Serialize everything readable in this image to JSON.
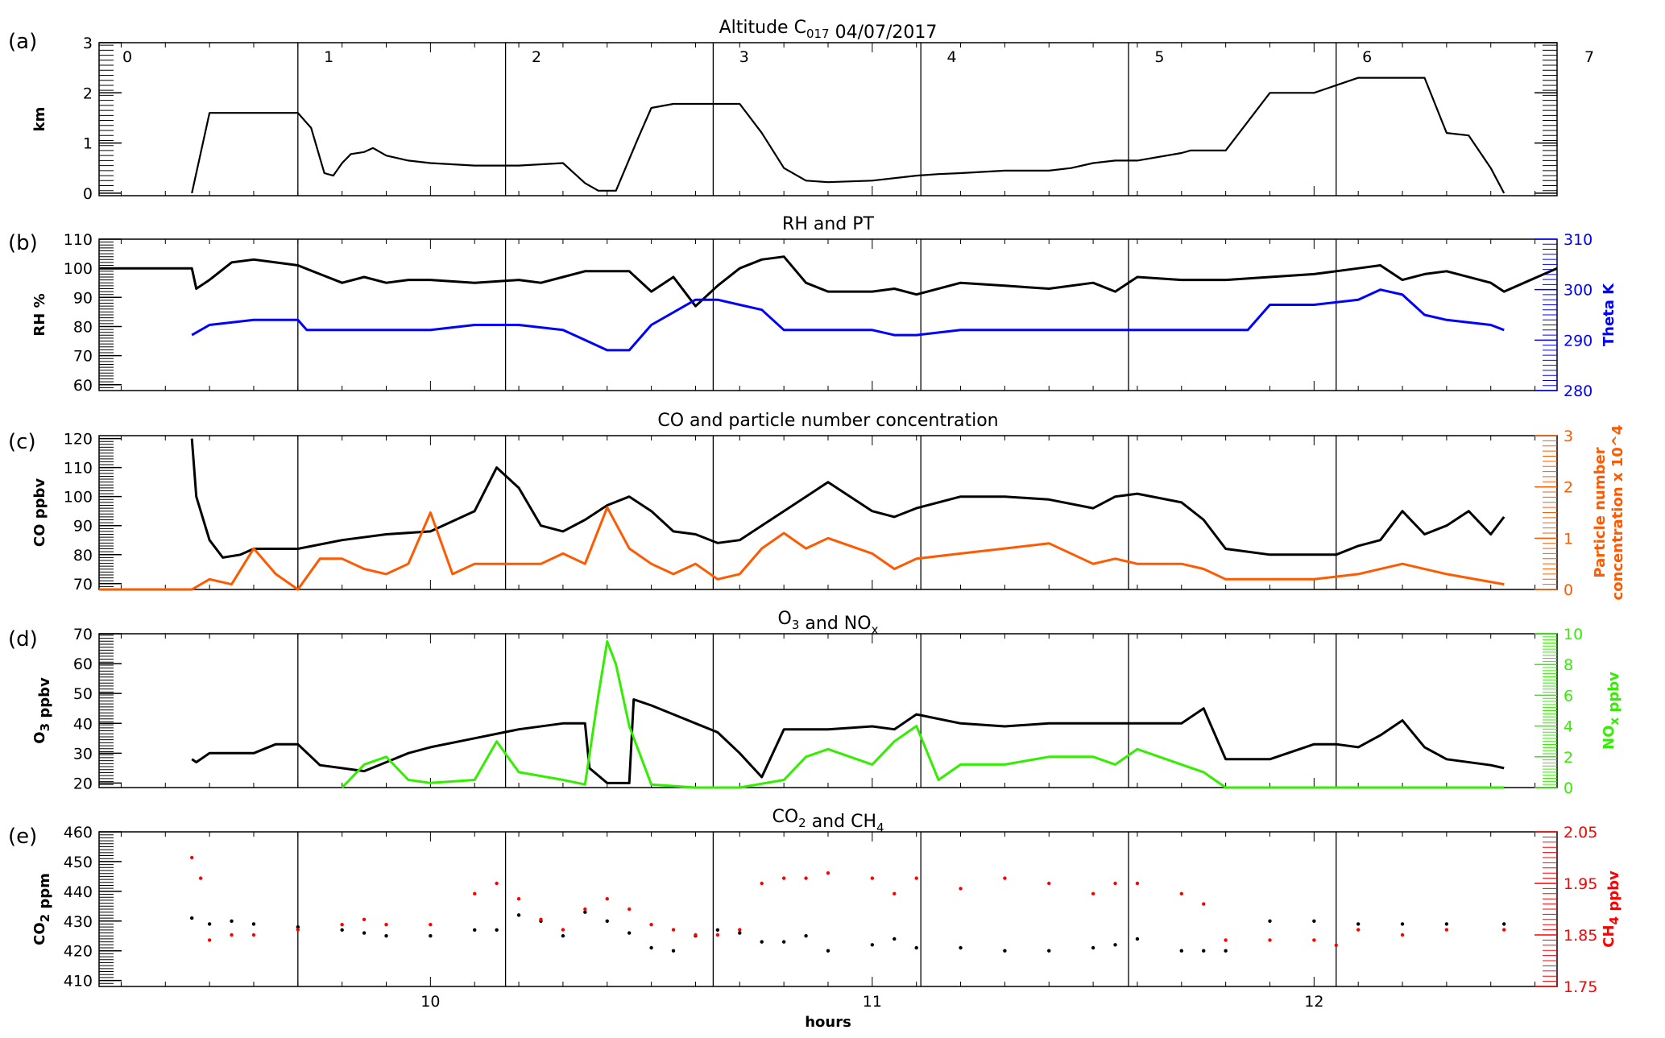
{
  "figure": {
    "x_axis": {
      "label": "hours",
      "range": [
        9.25,
        12.55
      ],
      "tick_values": [
        10,
        11,
        12
      ],
      "tick_labels": [
        "10",
        "11",
        "12"
      ],
      "segment_boundaries": [
        9.7,
        10.17,
        10.64,
        11.11,
        11.58,
        12.05
      ],
      "segment_labels": [
        "0",
        "1",
        "2",
        "3",
        "4",
        "5",
        "6",
        "7"
      ]
    }
  },
  "chart_data": [
    {
      "panel": "(a)",
      "type": "line",
      "title": "Altitude   C017   04/07/2017",
      "ylabel": "km",
      "ylim": [
        -0.05,
        3
      ],
      "y_ticks": [
        "0",
        "1",
        "2",
        "3"
      ],
      "series": [
        {
          "color": "#000000",
          "x": [
            9.46,
            9.5,
            9.6,
            9.7,
            9.73,
            9.75,
            9.76,
            9.78,
            9.8,
            9.82,
            9.85,
            9.87,
            9.9,
            9.95,
            10.0,
            10.1,
            10.2,
            10.3,
            10.35,
            10.38,
            10.42,
            10.47,
            10.5,
            10.55,
            10.6,
            10.7,
            10.75,
            10.8,
            10.85,
            10.9,
            11.0,
            11.1,
            11.15,
            11.2,
            11.3,
            11.4,
            11.45,
            11.5,
            11.55,
            11.6,
            11.7,
            11.72,
            11.78,
            11.8,
            11.9,
            11.92,
            12.0,
            12.1,
            12.2,
            12.25,
            12.3,
            12.35,
            12.4,
            12.43
          ],
          "y": [
            0.0,
            1.6,
            1.6,
            1.6,
            1.3,
            0.7,
            0.4,
            0.35,
            0.6,
            0.78,
            0.82,
            0.9,
            0.75,
            0.65,
            0.6,
            0.55,
            0.55,
            0.6,
            0.2,
            0.05,
            0.05,
            1.1,
            1.7,
            1.78,
            1.78,
            1.78,
            1.2,
            0.5,
            0.25,
            0.22,
            0.25,
            0.35,
            0.38,
            0.4,
            0.45,
            0.45,
            0.5,
            0.6,
            0.65,
            0.65,
            0.8,
            0.85,
            0.85,
            0.85,
            2.0,
            2.0,
            2.0,
            2.3,
            2.3,
            2.3,
            1.2,
            1.15,
            0.5,
            0.0
          ]
        }
      ]
    },
    {
      "panel": "(b)",
      "type": "line",
      "title": "RH and PT",
      "ylabel": "RH %",
      "ylim": [
        58,
        110
      ],
      "y_ticks": [
        "60",
        "70",
        "80",
        "90",
        "100",
        "110"
      ],
      "y2label": "Theta K",
      "y2lim": [
        280,
        310
      ],
      "y2_ticks": [
        "280",
        "290",
        "300",
        "310"
      ],
      "series": [
        {
          "axis": "left",
          "color": "#000000",
          "x": [
            9.25,
            9.46,
            9.47,
            9.5,
            9.55,
            9.6,
            9.65,
            9.7,
            9.75,
            9.8,
            9.85,
            9.9,
            9.95,
            10.0,
            10.1,
            10.2,
            10.25,
            10.3,
            10.35,
            10.4,
            10.45,
            10.5,
            10.55,
            10.6,
            10.65,
            10.7,
            10.75,
            10.8,
            10.85,
            10.9,
            11.0,
            11.05,
            11.1,
            11.2,
            11.3,
            11.4,
            11.5,
            11.55,
            11.6,
            11.7,
            11.8,
            11.9,
            12.0,
            12.05,
            12.1,
            12.15,
            12.2,
            12.25,
            12.3,
            12.4,
            12.43,
            12.55
          ],
          "y": [
            100,
            100,
            93,
            96,
            102,
            103,
            102,
            101,
            98,
            95,
            97,
            95,
            96,
            96,
            95,
            96,
            95,
            97,
            99,
            99,
            99,
            92,
            97,
            87,
            94,
            100,
            103,
            104,
            95,
            92,
            92,
            93,
            91,
            95,
            94,
            93,
            95,
            92,
            97,
            96,
            96,
            97,
            98,
            99,
            100,
            101,
            96,
            98,
            99,
            95,
            92,
            100
          ]
        },
        {
          "axis": "right",
          "color": "#0000ff",
          "x": [
            9.46,
            9.5,
            9.6,
            9.7,
            9.72,
            9.8,
            9.9,
            10.0,
            10.1,
            10.2,
            10.3,
            10.35,
            10.4,
            10.45,
            10.5,
            10.6,
            10.65,
            10.7,
            10.75,
            10.8,
            10.9,
            11.0,
            11.05,
            11.1,
            11.2,
            11.3,
            11.4,
            11.5,
            11.6,
            11.7,
            11.8,
            11.85,
            11.9,
            12.0,
            12.1,
            12.15,
            12.2,
            12.25,
            12.3,
            12.4,
            12.43
          ],
          "y": [
            291,
            293,
            294,
            294,
            292,
            292,
            292,
            292,
            293,
            293,
            292,
            290,
            288,
            288,
            293,
            298,
            298,
            297,
            296,
            292,
            292,
            292,
            291,
            291,
            292,
            292,
            292,
            292,
            292,
            292,
            292,
            292,
            297,
            297,
            298,
            300,
            299,
            295,
            294,
            293,
            292
          ]
        }
      ]
    },
    {
      "panel": "(c)",
      "type": "line",
      "title": "CO and particle number concentration",
      "ylabel": "CO ppbv",
      "ylim": [
        68,
        121
      ],
      "y_ticks": [
        "70",
        "80",
        "90",
        "100",
        "110",
        "120"
      ],
      "y2label": "Particle number concentration x 10^4",
      "y2lim": [
        0,
        3
      ],
      "y2_ticks": [
        "0",
        "1",
        "2",
        "3"
      ],
      "series": [
        {
          "axis": "left",
          "color": "#000000",
          "x": [
            9.46,
            9.47,
            9.5,
            9.53,
            9.57,
            9.6,
            9.7,
            9.8,
            9.9,
            10.0,
            10.1,
            10.15,
            10.2,
            10.25,
            10.3,
            10.35,
            10.4,
            10.45,
            10.5,
            10.55,
            10.6,
            10.65,
            10.7,
            10.75,
            10.8,
            10.85,
            10.9,
            11.0,
            11.05,
            11.1,
            11.2,
            11.3,
            11.4,
            11.5,
            11.55,
            11.6,
            11.7,
            11.75,
            11.8,
            11.9,
            12.0,
            12.05,
            12.1,
            12.15,
            12.2,
            12.25,
            12.3,
            12.35,
            12.4,
            12.43
          ],
          "y": [
            120,
            100,
            85,
            79,
            80,
            82,
            82,
            85,
            87,
            88,
            95,
            110,
            103,
            90,
            88,
            92,
            97,
            100,
            95,
            88,
            87,
            84,
            85,
            90,
            95,
            100,
            105,
            95,
            93,
            96,
            100,
            100,
            99,
            96,
            100,
            101,
            98,
            92,
            82,
            80,
            80,
            80,
            83,
            85,
            95,
            87,
            90,
            95,
            87,
            93
          ]
        },
        {
          "axis": "right",
          "color": "#ff5a00",
          "x": [
            9.25,
            9.46,
            9.5,
            9.55,
            9.6,
            9.65,
            9.7,
            9.75,
            9.8,
            9.85,
            9.9,
            9.95,
            10.0,
            10.05,
            10.1,
            10.15,
            10.2,
            10.25,
            10.3,
            10.35,
            10.4,
            10.45,
            10.5,
            10.55,
            10.6,
            10.65,
            10.7,
            10.75,
            10.8,
            10.85,
            10.9,
            11.0,
            11.05,
            11.1,
            11.2,
            11.3,
            11.4,
            11.5,
            11.55,
            11.6,
            11.7,
            11.75,
            11.8,
            11.9,
            12.0,
            12.1,
            12.2,
            12.3,
            12.43
          ],
          "y": [
            0,
            0,
            0.2,
            0.1,
            0.8,
            0.3,
            0,
            0.6,
            0.6,
            0.4,
            0.3,
            0.5,
            1.5,
            0.3,
            0.5,
            0.5,
            0.5,
            0.5,
            0.7,
            0.5,
            1.6,
            0.8,
            0.5,
            0.3,
            0.5,
            0.2,
            0.3,
            0.8,
            1.1,
            0.8,
            1.0,
            0.7,
            0.4,
            0.6,
            0.7,
            0.8,
            0.9,
            0.5,
            0.6,
            0.5,
            0.5,
            0.4,
            0.2,
            0.2,
            0.2,
            0.3,
            0.5,
            0.3,
            0.1
          ]
        }
      ]
    },
    {
      "panel": "(d)",
      "type": "line",
      "title": "O3 and NOx",
      "ylabel": "O3 ppbv",
      "ylim": [
        18.5,
        70
      ],
      "y_ticks": [
        "20",
        "30",
        "40",
        "50",
        "60",
        "70"
      ],
      "y2label": "NOx ppbv",
      "y2lim": [
        0,
        10
      ],
      "y2_ticks": [
        "0",
        "2",
        "4",
        "6",
        "8",
        "10"
      ],
      "series": [
        {
          "axis": "left",
          "color": "#000000",
          "x": [
            9.46,
            9.47,
            9.5,
            9.6,
            9.65,
            9.7,
            9.75,
            9.8,
            9.85,
            9.9,
            9.95,
            10.0,
            10.1,
            10.2,
            10.3,
            10.35,
            10.36,
            10.4,
            10.45,
            10.46,
            10.5,
            10.55,
            10.6,
            10.65,
            10.7,
            10.75,
            10.8,
            10.9,
            11.0,
            11.05,
            11.1,
            11.2,
            11.3,
            11.4,
            11.5,
            11.6,
            11.7,
            11.75,
            11.8,
            11.9,
            12.0,
            12.05,
            12.1,
            12.15,
            12.2,
            12.25,
            12.3,
            12.4,
            12.43
          ],
          "y": [
            28,
            27,
            30,
            30,
            33,
            33,
            26,
            25,
            24,
            27,
            30,
            32,
            35,
            38,
            40,
            40,
            25,
            20,
            20,
            48,
            46,
            43,
            40,
            37,
            30,
            22,
            38,
            38,
            39,
            38,
            43,
            40,
            39,
            40,
            40,
            40,
            40,
            45,
            28,
            28,
            33,
            33,
            32,
            36,
            41,
            32,
            28,
            26,
            25
          ]
        },
        {
          "axis": "right",
          "color": "#33ee00",
          "x": [
            9.8,
            9.85,
            9.9,
            9.95,
            10.0,
            10.1,
            10.15,
            10.2,
            10.3,
            10.35,
            10.38,
            10.4,
            10.42,
            10.45,
            10.5,
            10.6,
            10.7,
            10.8,
            10.85,
            10.9,
            11.0,
            11.05,
            11.1,
            11.15,
            11.2,
            11.3,
            11.4,
            11.5,
            11.55,
            11.6,
            11.7,
            11.75,
            11.8,
            12.0,
            12.1,
            12.2,
            12.43
          ],
          "y": [
            0,
            1.5,
            2.0,
            0.5,
            0.3,
            0.5,
            3.0,
            1.0,
            0.5,
            0.2,
            6.0,
            9.5,
            8.0,
            4.0,
            0.2,
            0,
            0,
            0.5,
            2.0,
            2.5,
            1.5,
            3.0,
            4.0,
            0.5,
            1.5,
            1.5,
            2.0,
            2.0,
            1.5,
            2.5,
            1.5,
            1.0,
            0,
            0,
            0,
            0,
            0
          ]
        }
      ]
    },
    {
      "panel": "(e)",
      "type": "scatter",
      "title": "CO2 and CH4",
      "ylabel": "CO2 ppm",
      "ylim": [
        408,
        460
      ],
      "y_ticks": [
        "410",
        "420",
        "430",
        "440",
        "450",
        "460"
      ],
      "y2label": "CH4 ppbv",
      "y2lim": [
        1.75,
        2.05
      ],
      "y2_ticks": [
        "1.75",
        "1.85",
        "1.95",
        "2.05"
      ],
      "series": [
        {
          "axis": "left",
          "color": "#000000",
          "x": [
            9.46,
            9.5,
            9.55,
            9.6,
            9.7,
            9.8,
            9.85,
            9.9,
            10.0,
            10.1,
            10.15,
            10.2,
            10.25,
            10.3,
            10.35,
            10.4,
            10.45,
            10.5,
            10.55,
            10.6,
            10.65,
            10.7,
            10.75,
            10.8,
            10.85,
            10.9,
            11.0,
            11.05,
            11.1,
            11.2,
            11.3,
            11.4,
            11.5,
            11.55,
            11.6,
            11.7,
            11.75,
            11.8,
            11.9,
            12.0,
            12.1,
            12.2,
            12.3,
            12.43
          ],
          "y": [
            431,
            429,
            430,
            429,
            428,
            427,
            426,
            425,
            425,
            427,
            427,
            432,
            430,
            425,
            433,
            430,
            426,
            421,
            420,
            425,
            427,
            426,
            423,
            423,
            425,
            420,
            422,
            424,
            421,
            421,
            420,
            420,
            421,
            422,
            424,
            420,
            420,
            420,
            430,
            430,
            429,
            429,
            429,
            429
          ]
        },
        {
          "axis": "right",
          "color": "#ff0000",
          "x": [
            9.46,
            9.48,
            9.5,
            9.55,
            9.6,
            9.7,
            9.8,
            9.85,
            9.9,
            10.0,
            10.1,
            10.15,
            10.2,
            10.25,
            10.3,
            10.35,
            10.4,
            10.45,
            10.5,
            10.55,
            10.6,
            10.65,
            10.7,
            10.75,
            10.8,
            10.85,
            10.9,
            11.0,
            11.05,
            11.1,
            11.2,
            11.3,
            11.4,
            11.5,
            11.55,
            11.6,
            11.7,
            11.75,
            11.8,
            11.9,
            12.0,
            12.05,
            12.1,
            12.2,
            12.3,
            12.43
          ],
          "y": [
            2.0,
            1.96,
            1.84,
            1.85,
            1.85,
            1.86,
            1.87,
            1.88,
            1.87,
            1.87,
            1.93,
            1.95,
            1.92,
            1.88,
            1.86,
            1.9,
            1.92,
            1.9,
            1.87,
            1.86,
            1.85,
            1.85,
            1.86,
            1.95,
            1.96,
            1.96,
            1.97,
            1.96,
            1.93,
            1.96,
            1.94,
            1.96,
            1.95,
            1.93,
            1.95,
            1.95,
            1.93,
            1.91,
            1.84,
            1.84,
            1.84,
            1.83,
            1.86,
            1.85,
            1.86,
            1.86
          ]
        }
      ]
    }
  ]
}
